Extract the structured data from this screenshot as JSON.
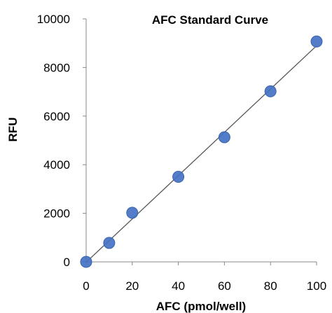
{
  "chart_data": {
    "type": "scatter",
    "title": "AFC Standard Curve",
    "xlabel": "AFC (pmol/well)",
    "ylabel": "RFU",
    "xlim": [
      0,
      100
    ],
    "ylim": [
      0,
      10000
    ],
    "x_ticks": [
      "0",
      "20",
      "40",
      "60",
      "80",
      "100"
    ],
    "y_ticks": [
      "0",
      "2000",
      "4000",
      "6000",
      "8000",
      "10000"
    ],
    "grid": false,
    "legend": "none",
    "series": [
      {
        "x": [
          0,
          10,
          20,
          40,
          60,
          80,
          100
        ],
        "y": [
          0,
          780,
          2020,
          3500,
          5130,
          7020,
          9070
        ],
        "marker_color": "#4472C4"
      }
    ],
    "trendline": {
      "type": "linear",
      "color": "#555555"
    }
  }
}
